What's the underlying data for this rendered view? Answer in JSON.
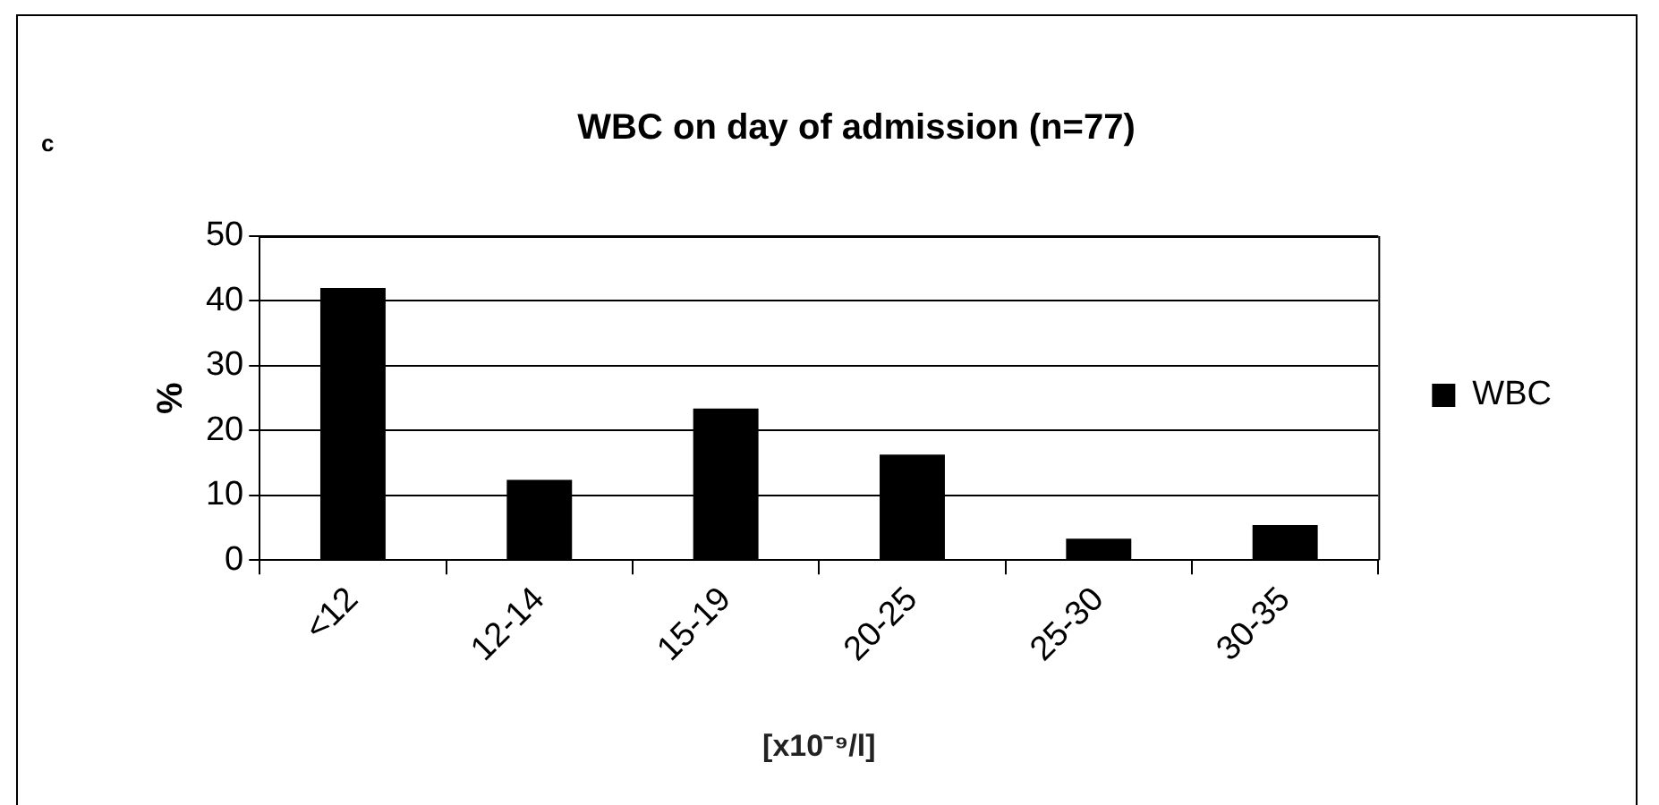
{
  "chart_data": {
    "type": "bar",
    "title": "WBC on day of admission (n=77)",
    "xlabel": "[x10⁻⁹/l]",
    "ylabel": "%",
    "annotations": [
      "c"
    ],
    "categories": [
      "<12",
      "12-14",
      "15-19",
      "20-25",
      "25-30",
      "30-35"
    ],
    "series": [
      {
        "name": "WBC",
        "color": "#000000",
        "values": [
          42,
          12.4,
          23.4,
          16.3,
          3.3,
          5.4
        ]
      }
    ],
    "ylim": [
      0,
      50
    ],
    "yticks": [
      0,
      10,
      20,
      30,
      40,
      50
    ],
    "grid": "y",
    "legend": "right"
  }
}
